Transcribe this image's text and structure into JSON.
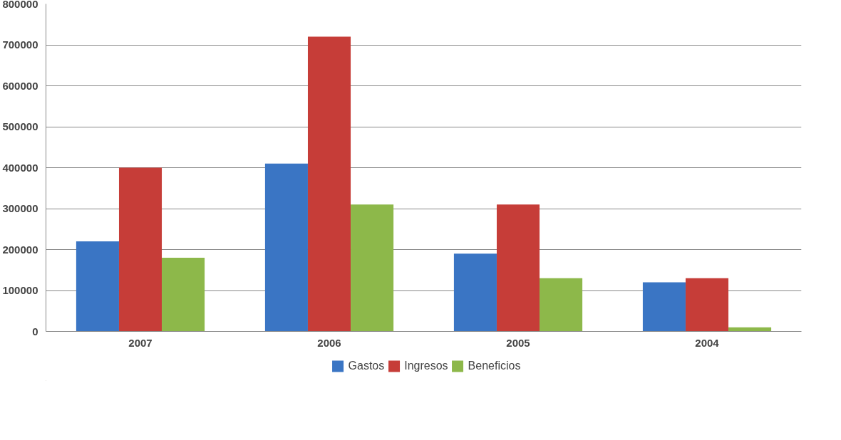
{
  "chart_data": {
    "type": "bar",
    "categories": [
      "2007",
      "2006",
      "2005",
      "2004"
    ],
    "series": [
      {
        "name": "Gastos",
        "color": "#3a75c4",
        "values": [
          220000,
          410000,
          190000,
          120000
        ]
      },
      {
        "name": "Ingresos",
        "color": "#c63d38",
        "values": [
          400000,
          720000,
          310000,
          130000
        ]
      },
      {
        "name": "Beneficios",
        "color": "#8db84a",
        "values": [
          180000,
          310000,
          130000,
          10000
        ]
      }
    ],
    "ylim": [
      0,
      800000
    ],
    "yticks": [
      0,
      100000,
      200000,
      300000,
      400000,
      500000,
      600000,
      700000,
      800000
    ],
    "grid": "y",
    "legend": "bottom"
  }
}
